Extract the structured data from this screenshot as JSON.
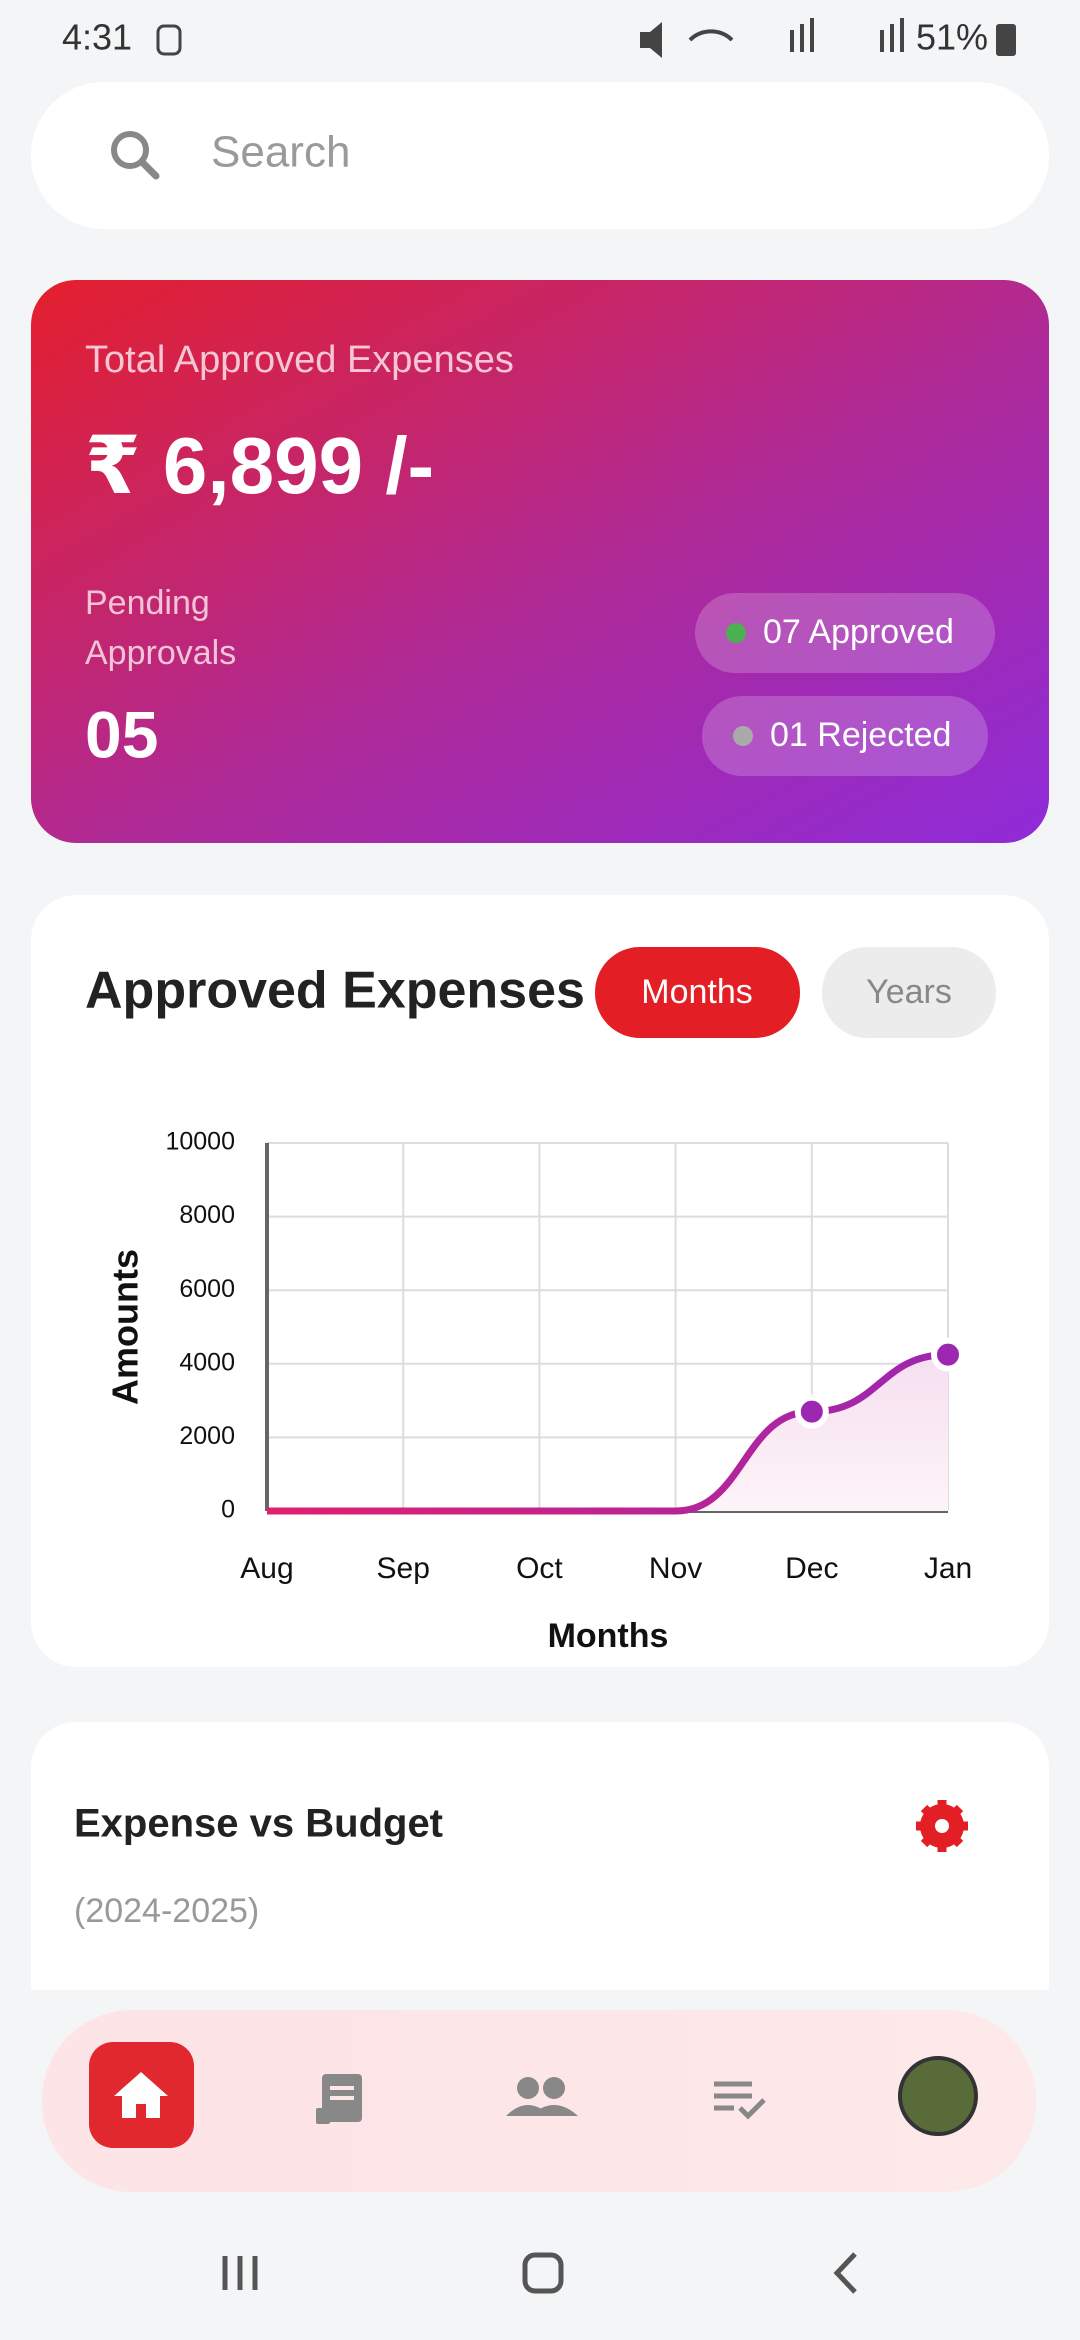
{
  "status_bar": {
    "time": "4:31",
    "battery": "51%"
  },
  "search": {
    "placeholder": "Search"
  },
  "summary": {
    "title": "Total Approved Expenses",
    "amount": "₹ 6,899 /-",
    "pending_label": [
      "Pending",
      "Approvals"
    ],
    "pending_count": "05",
    "approved": "07 Approved",
    "rejected": "01 Rejected"
  },
  "toggle": {
    "options": [
      "Months",
      "Years"
    ]
  },
  "chart_data": {
    "type": "line",
    "title": "Approved Expenses",
    "x_label": "Months",
    "y_label": "Amounts",
    "categories": [
      "Aug",
      "Sep",
      "Oct",
      "Nov",
      "Dec",
      "Jan"
    ],
    "values": [
      0,
      0,
      0,
      0,
      2700,
      4250
    ],
    "color": "#9c27b0",
    "ylim": [
      0,
      10000
    ],
    "yticks": [
      0,
      2000,
      4000,
      6000,
      8000,
      10000
    ],
    "grid": true
  },
  "budget": {
    "title": "Expense vs Budget",
    "period": "(2024-2025)"
  }
}
